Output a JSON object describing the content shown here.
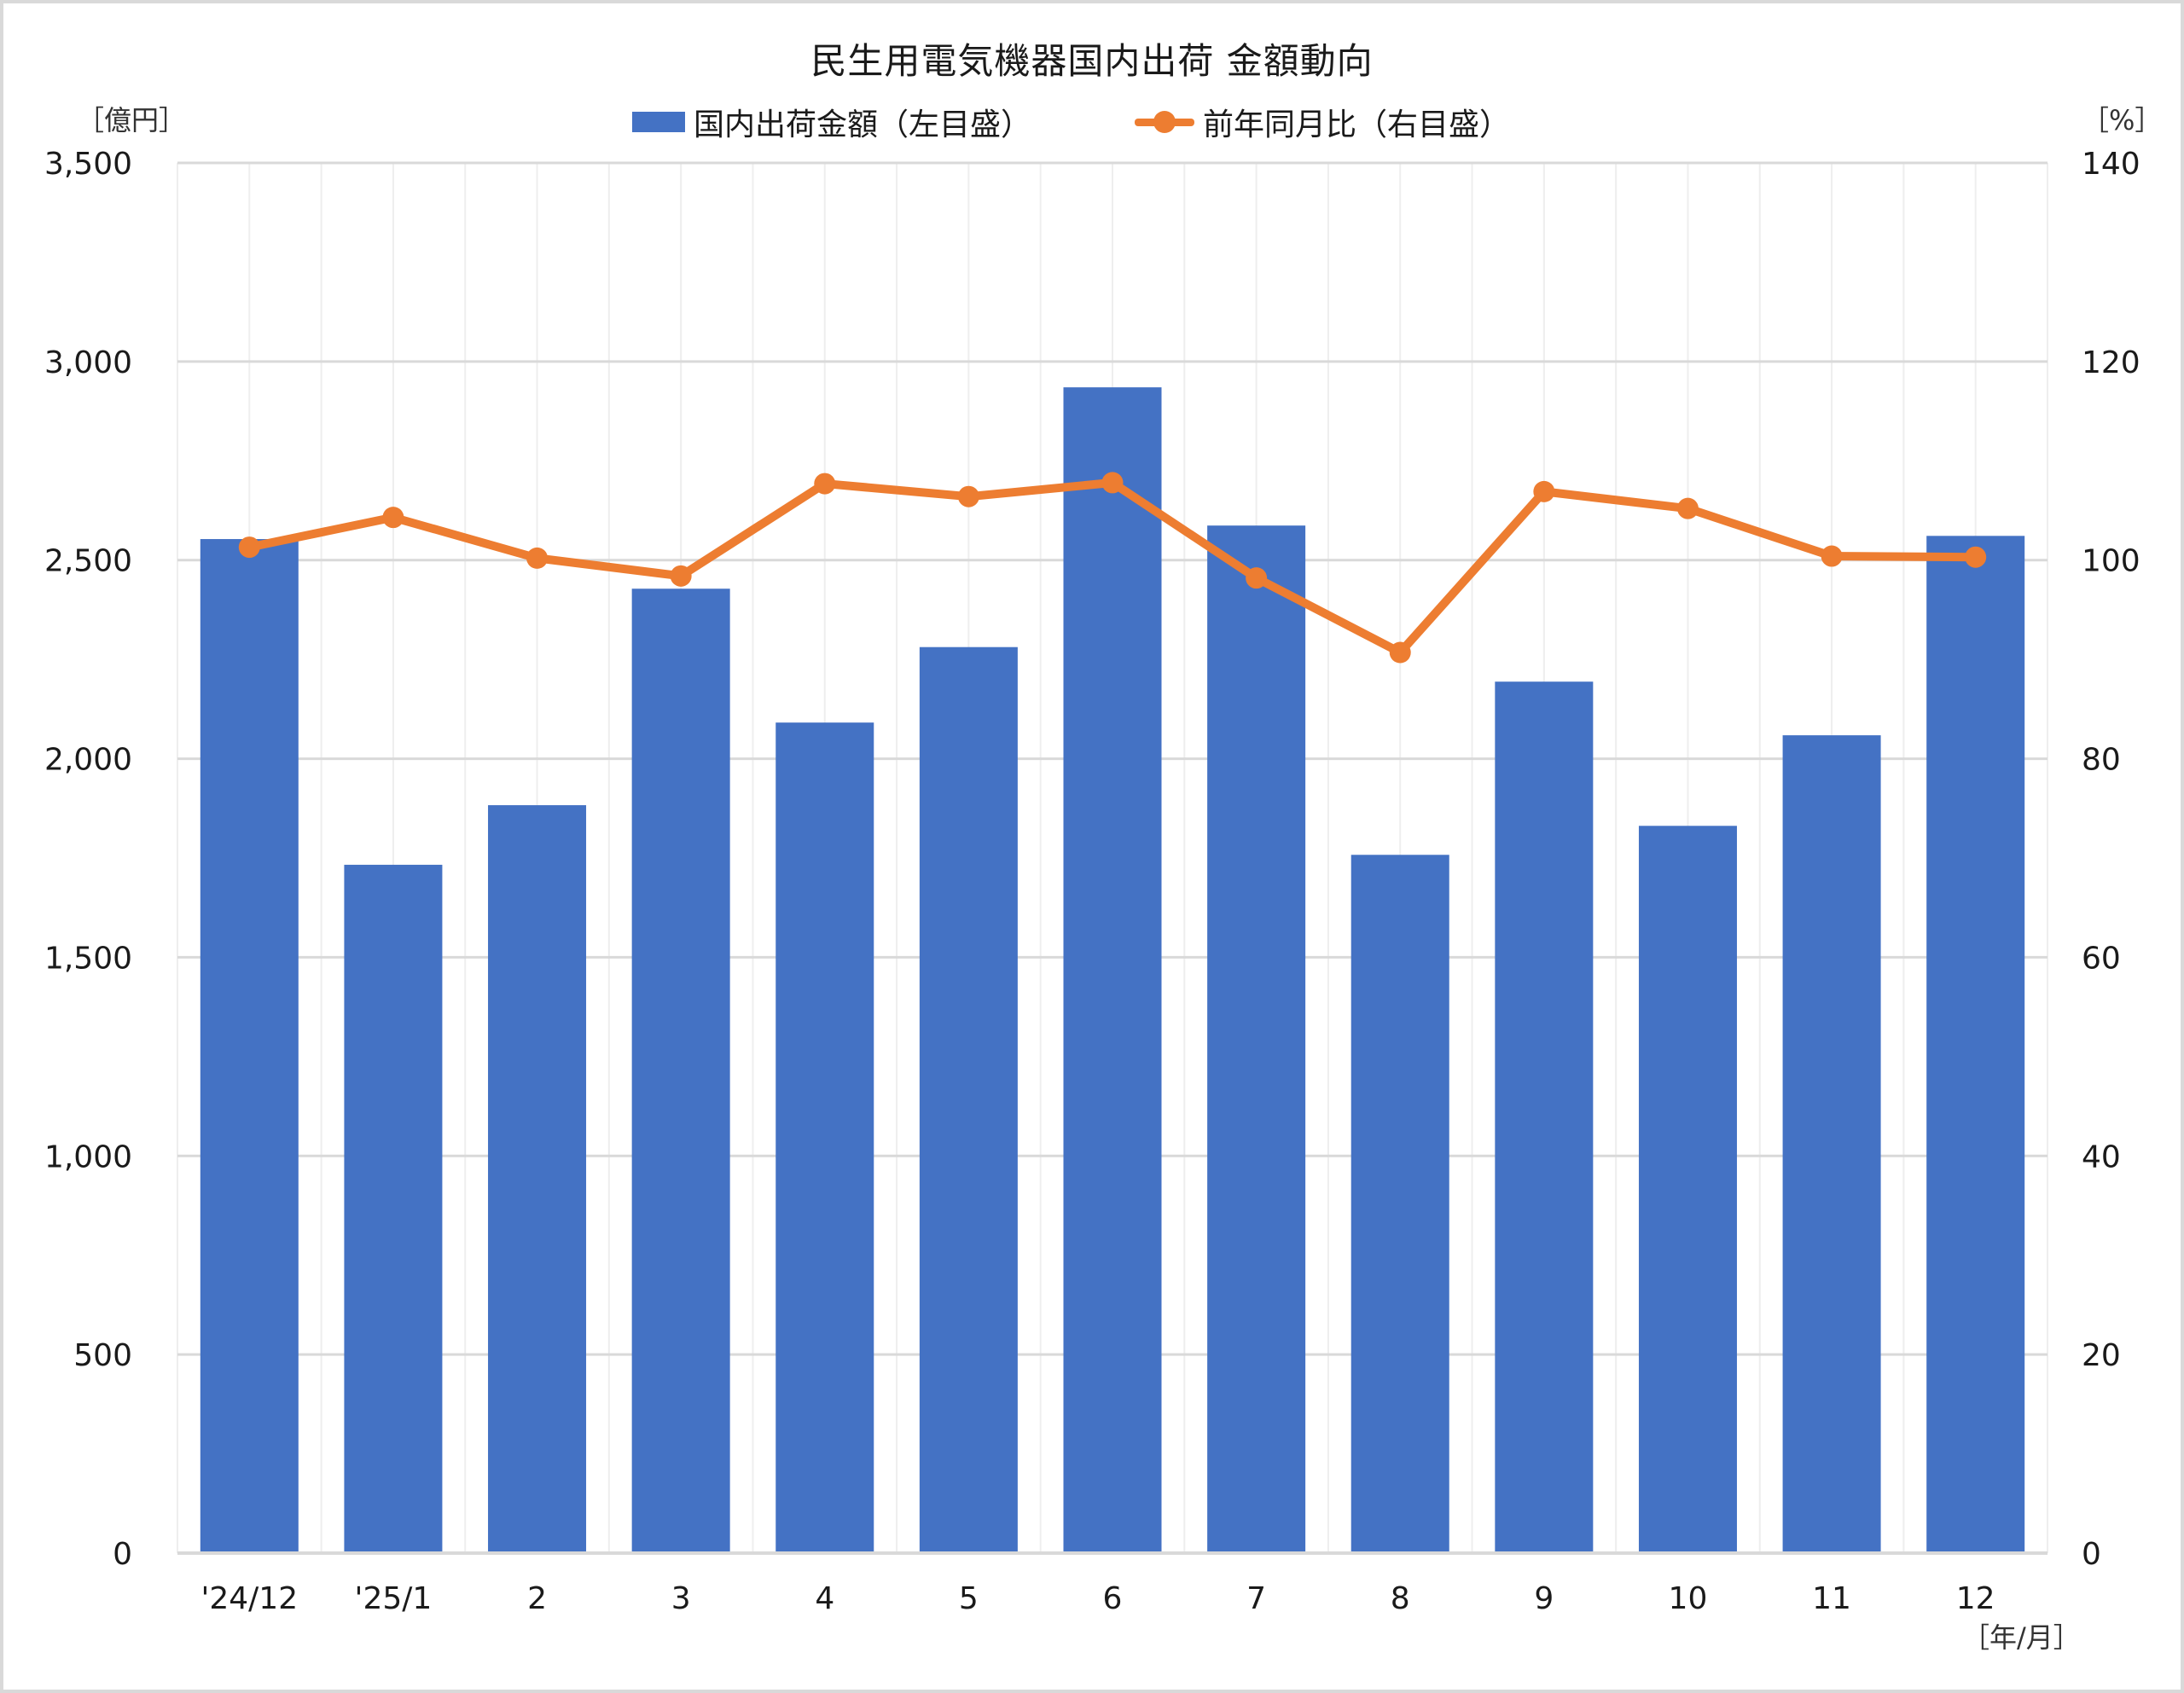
{
  "chart": {
    "title": "民生用電気機器国内出荷 金額動向",
    "left_unit": "［億円］",
    "right_unit": "［%］",
    "x_unit": "［年/月］",
    "legend": {
      "bar_label": "国内出荷金額（左目盛）",
      "line_label": "前年同月比（右目盛）"
    },
    "colors": {
      "bar": "#4472C4",
      "line": "#ED7D31",
      "grid": "#d9d9d9",
      "vgrid": "#eeeeee"
    },
    "left_ticks": [
      "0",
      "500",
      "1,000",
      "1,500",
      "2,000",
      "2,500",
      "3,000",
      "3,500"
    ],
    "right_ticks": [
      "0",
      "20",
      "40",
      "60",
      "80",
      "100",
      "120",
      "140"
    ]
  },
  "chart_data": {
    "type": "bar+line",
    "title": "民生用電気機器国内出荷 金額動向",
    "xlabel": "［年/月］",
    "ylabel": "［億円］",
    "y2label": "［%］",
    "categories": [
      "'24/12",
      "'25/1",
      "2",
      "3",
      "4",
      "5",
      "6",
      "7",
      "8",
      "9",
      "10",
      "11",
      "12"
    ],
    "series": [
      {
        "name": "国内出荷金額（左目盛）",
        "type": "bar",
        "axis": "left",
        "values": [
          2553,
          1733,
          1883,
          2428,
          2091,
          2281,
          2935,
          2587,
          1758,
          2194,
          1831,
          2059,
          2561
        ]
      },
      {
        "name": "前年同月比（右目盛）",
        "type": "line",
        "axis": "right",
        "values": [
          101.3,
          104.3,
          100.2,
          98.4,
          107.7,
          106.4,
          107.8,
          98.2,
          90.7,
          106.9,
          105.2,
          100.4,
          100.3
        ]
      }
    ],
    "ylim": [
      0,
      3500
    ],
    "y2lim": [
      0,
      140
    ],
    "yticks": [
      0,
      500,
      1000,
      1500,
      2000,
      2500,
      3000,
      3500
    ],
    "y2ticks": [
      0,
      20,
      40,
      60,
      80,
      100,
      120,
      140
    ],
    "grid": true,
    "legend_position": "top"
  }
}
